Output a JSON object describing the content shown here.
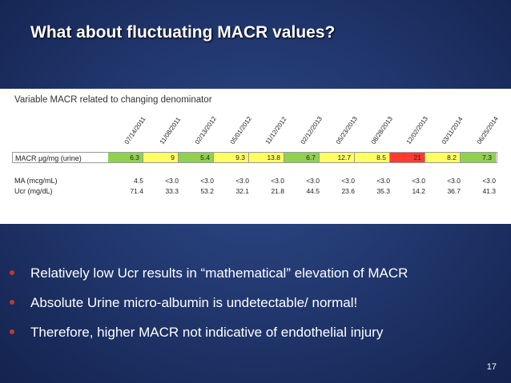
{
  "slide": {
    "title": "What about fluctuating MACR values?",
    "page_number": "17"
  },
  "table": {
    "caption": "Variable MACR related to changing denominator",
    "dates": [
      "07/14/2011",
      "11/08/2011",
      "02/13/2012",
      "05/01/2012",
      "11/12/2012",
      "02/12/2013",
      "05/23/2013",
      "08/28/2013",
      "12/02/2013",
      "03/11/2014",
      "06/25/2014"
    ],
    "rows": {
      "macr": {
        "label": "MACR μg/mg (urine)",
        "values": [
          "6.3",
          "9",
          "5.4",
          "9.3",
          "13.8",
          "6.7",
          "12.7",
          "8.5",
          "21",
          "8.2",
          "7.3"
        ],
        "colors": [
          "#92d050",
          "#ffff66",
          "#92d050",
          "#ffff66",
          "#ffff66",
          "#92d050",
          "#ffff66",
          "#ffff66",
          "#ff3b30",
          "#ffff66",
          "#92d050"
        ]
      },
      "ma": {
        "label": "MA (mcg/mL)",
        "values": [
          "4.5",
          "<3.0",
          "<3.0",
          "<3.0",
          "<3.0",
          "<3.0",
          "<3.0",
          "<3.0",
          "<3.0",
          "<3.0",
          "<3.0"
        ]
      },
      "ucr": {
        "label": "Ucr (mg/dL)",
        "values": [
          "71.4",
          "33.3",
          "53.2",
          "32.1",
          "21.8",
          "44.5",
          "23.6",
          "35.3",
          "14.2",
          "36.7",
          "41.3"
        ]
      }
    }
  },
  "bullets": [
    "Relatively low Ucr results in “mathematical” elevation of MACR",
    "Absolute Urine micro-albumin is undetectable/ normal!",
    "Therefore, higher MACR not indicative of endothelial injury"
  ],
  "colors": {
    "background": "#1f3469",
    "bullet_marker": "#c0392b"
  }
}
